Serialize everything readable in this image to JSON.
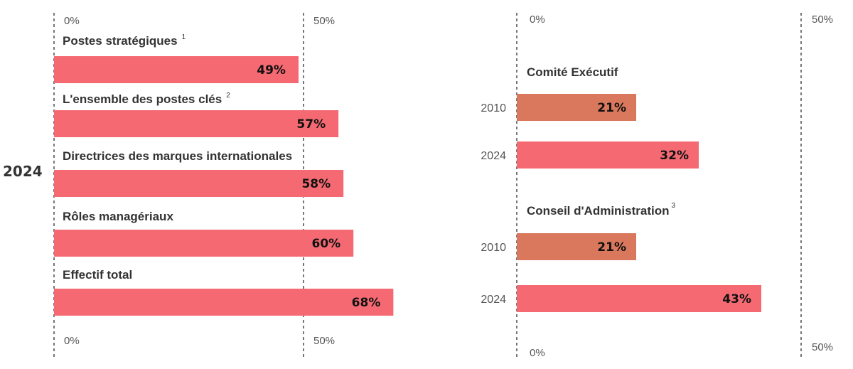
{
  "colors": {
    "pink": "#f56a72",
    "orange": "#d9785c",
    "grid": "#777777"
  },
  "chart_data": [
    {
      "type": "bar",
      "orientation": "horizontal",
      "year_label": "2024",
      "tick_labels": {
        "zero": "0%",
        "mid": "50%"
      },
      "xlim": [
        0,
        50
      ],
      "grid": true,
      "categories": [
        {
          "label": "Postes stratégiques",
          "note": "1",
          "value": 49,
          "value_label": "49%"
        },
        {
          "label": "L'ensemble des postes clés",
          "note": "2",
          "value": 57,
          "value_label": "57%"
        },
        {
          "label": "Directrices des marques internationales",
          "note": "",
          "value": 58,
          "value_label": "58%"
        },
        {
          "label": "Rôles managériaux",
          "note": "",
          "value": 60,
          "value_label": "60%"
        },
        {
          "label": "Effectif total",
          "note": "",
          "value": 68,
          "value_label": "68%"
        }
      ]
    },
    {
      "type": "bar",
      "orientation": "horizontal",
      "tick_labels": {
        "zero": "0%",
        "mid": "50%"
      },
      "xlim": [
        0,
        50
      ],
      "grid": true,
      "groups": [
        {
          "label": "Comité Exécutif",
          "note": "",
          "bars": [
            {
              "year": "2010",
              "value": 21,
              "value_label": "21%",
              "color": "orange"
            },
            {
              "year": "2024",
              "value": 32,
              "value_label": "32%",
              "color": "pink"
            }
          ]
        },
        {
          "label": "Conseil d'Administration",
          "note": "3",
          "bars": [
            {
              "year": "2010",
              "value": 21,
              "value_label": "21%",
              "color": "orange"
            },
            {
              "year": "2024",
              "value": 43,
              "value_label": "43%",
              "color": "pink"
            }
          ]
        }
      ]
    }
  ]
}
